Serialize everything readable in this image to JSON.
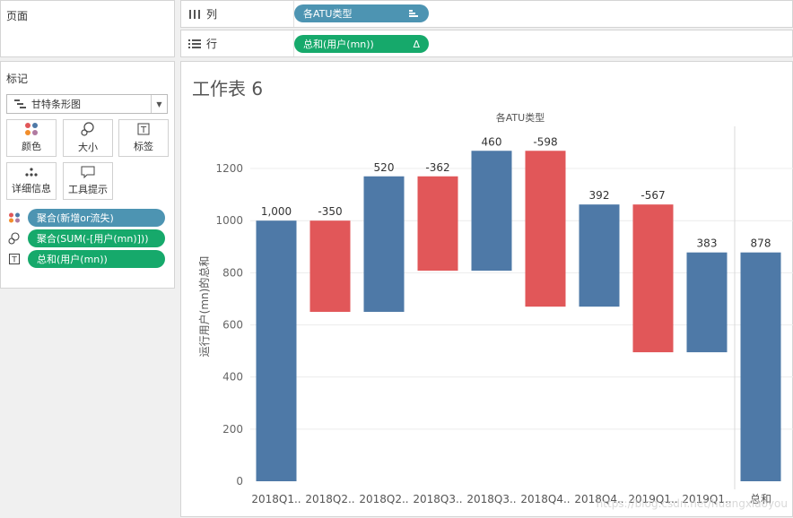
{
  "pages": {
    "title": "页面"
  },
  "columns_shelf": {
    "label": "列",
    "pill": "各ATU类型"
  },
  "rows_shelf": {
    "label": "行",
    "pill": "总和(用户(mn))"
  },
  "marks": {
    "title": "标记",
    "mark_type": "甘特条形图",
    "buttons": {
      "color": "颜色",
      "size": "大小",
      "label": "标签",
      "detail": "详细信息",
      "tooltip": "工具提示"
    },
    "fields": [
      {
        "icon": "color-dots-icon",
        "label": "聚合(新增or流失)",
        "color": "#4d94b2"
      },
      {
        "icon": "size-icon",
        "label": "聚合(SUM(-[用户(mn)]))",
        "color": "#16a96b"
      },
      {
        "icon": "label-icon",
        "label": "总和(用户(mn))",
        "color": "#16a96b"
      }
    ]
  },
  "sheet": {
    "title": "工作表 6"
  },
  "colors": {
    "increase": "#4e79a7",
    "decrease": "#e15759"
  },
  "chart_data": {
    "type": "bar",
    "subtype": "waterfall-gantt",
    "title": "各ATU类型",
    "ylabel": "运行用户(mn)的总和",
    "ylim": [
      0,
      1300
    ],
    "yticks": [
      0,
      200,
      400,
      600,
      800,
      1000,
      1200
    ],
    "categories": [
      "2018Q1..",
      "2018Q2..",
      "2018Q2..",
      "2018Q3..",
      "2018Q3..",
      "2018Q4..",
      "2018Q4..",
      "2019Q1..",
      "2019Q1..",
      "总和"
    ],
    "bars": [
      {
        "start": 0,
        "end": 1000,
        "label": "1,000",
        "kind": "increase"
      },
      {
        "start": 1000,
        "end": 650,
        "label": "-350",
        "kind": "decrease"
      },
      {
        "start": 650,
        "end": 1170,
        "label": "520",
        "kind": "increase"
      },
      {
        "start": 1170,
        "end": 808,
        "label": "-362",
        "kind": "decrease"
      },
      {
        "start": 808,
        "end": 1268,
        "label": "460",
        "kind": "increase"
      },
      {
        "start": 1268,
        "end": 670,
        "label": "-598",
        "kind": "decrease"
      },
      {
        "start": 670,
        "end": 1062,
        "label": "392",
        "kind": "increase"
      },
      {
        "start": 1062,
        "end": 495,
        "label": "-567",
        "kind": "decrease"
      },
      {
        "start": 495,
        "end": 878,
        "label": "383",
        "kind": "increase"
      },
      {
        "start": 0,
        "end": 878,
        "label": "878",
        "kind": "increase"
      }
    ]
  },
  "watermark": "https://blog.csdn.net/huangxiaoyou"
}
